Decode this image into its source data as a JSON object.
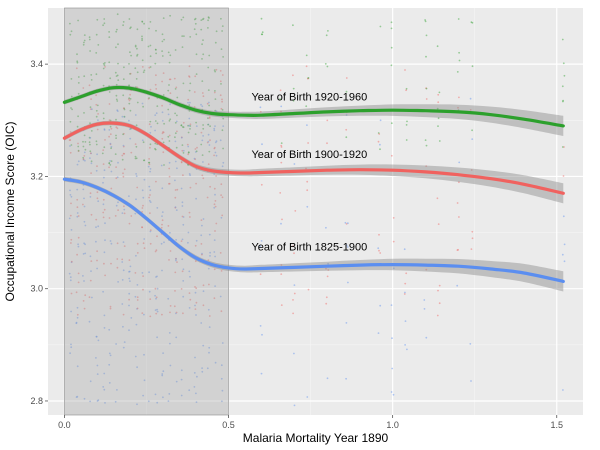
{
  "chart_data": {
    "type": "scatter",
    "title": "",
    "xlabel": "Malaria Mortality Year 1890",
    "ylabel": "Occupational Income Score (OIC)",
    "xlim": [
      -0.05,
      1.58
    ],
    "ylim": [
      2.775,
      3.5
    ],
    "x_ticks": [
      0.0,
      0.5,
      1.0,
      1.5
    ],
    "x_tick_labels": [
      "0.0",
      "0.5",
      "1.0",
      "1.5"
    ],
    "y_ticks": [
      2.8,
      3.0,
      3.2,
      3.4
    ],
    "y_tick_labels": [
      "2.8",
      "3.0",
      "3.2",
      "3.4"
    ],
    "grid": true,
    "panel_background": "#ebebeb",
    "shaded_region": {
      "x": [
        0.0,
        0.5
      ],
      "color": "#999999"
    },
    "series": [
      {
        "name": "Year of Birth 1920-1960",
        "color": "#2ca02c",
        "x": [
          0.0,
          0.05,
          0.1,
          0.15,
          0.2,
          0.25,
          0.3,
          0.35,
          0.4,
          0.45,
          0.5,
          0.55,
          0.6,
          0.7,
          0.8,
          0.9,
          1.0,
          1.1,
          1.2,
          1.3,
          1.4,
          1.52
        ],
        "y": [
          3.332,
          3.342,
          3.352,
          3.358,
          3.357,
          3.35,
          3.34,
          3.328,
          3.318,
          3.312,
          3.31,
          3.309,
          3.309,
          3.312,
          3.315,
          3.317,
          3.318,
          3.317,
          3.315,
          3.31,
          3.302,
          3.29
        ]
      },
      {
        "name": "Year of Birth 1900-1920",
        "color": "#f0625f",
        "x": [
          0.0,
          0.05,
          0.1,
          0.15,
          0.2,
          0.25,
          0.3,
          0.35,
          0.4,
          0.45,
          0.5,
          0.55,
          0.6,
          0.7,
          0.8,
          0.9,
          1.0,
          1.1,
          1.2,
          1.3,
          1.4,
          1.52
        ],
        "y": [
          3.268,
          3.283,
          3.293,
          3.295,
          3.29,
          3.275,
          3.255,
          3.235,
          3.218,
          3.21,
          3.207,
          3.206,
          3.207,
          3.209,
          3.211,
          3.212,
          3.211,
          3.208,
          3.203,
          3.196,
          3.186,
          3.17
        ]
      },
      {
        "name": "Year of Birth 1825-1900",
        "color": "#5b8ef0",
        "x": [
          0.0,
          0.05,
          0.1,
          0.15,
          0.2,
          0.25,
          0.3,
          0.35,
          0.4,
          0.45,
          0.5,
          0.55,
          0.6,
          0.7,
          0.8,
          0.9,
          1.0,
          1.1,
          1.2,
          1.3,
          1.4,
          1.52
        ],
        "y": [
          3.195,
          3.19,
          3.18,
          3.166,
          3.148,
          3.125,
          3.1,
          3.075,
          3.055,
          3.043,
          3.037,
          3.035,
          3.036,
          3.038,
          3.04,
          3.042,
          3.043,
          3.042,
          3.04,
          3.035,
          3.028,
          3.013
        ]
      }
    ],
    "annotations": [
      {
        "text": "Year of Birth 1920-1960",
        "x": 0.57,
        "y": 3.335
      },
      {
        "text": "Year of Birth 1900-1920",
        "x": 0.57,
        "y": 3.233
      },
      {
        "text": "Year of Birth 1825-1900",
        "x": 0.57,
        "y": 3.068
      }
    ]
  }
}
